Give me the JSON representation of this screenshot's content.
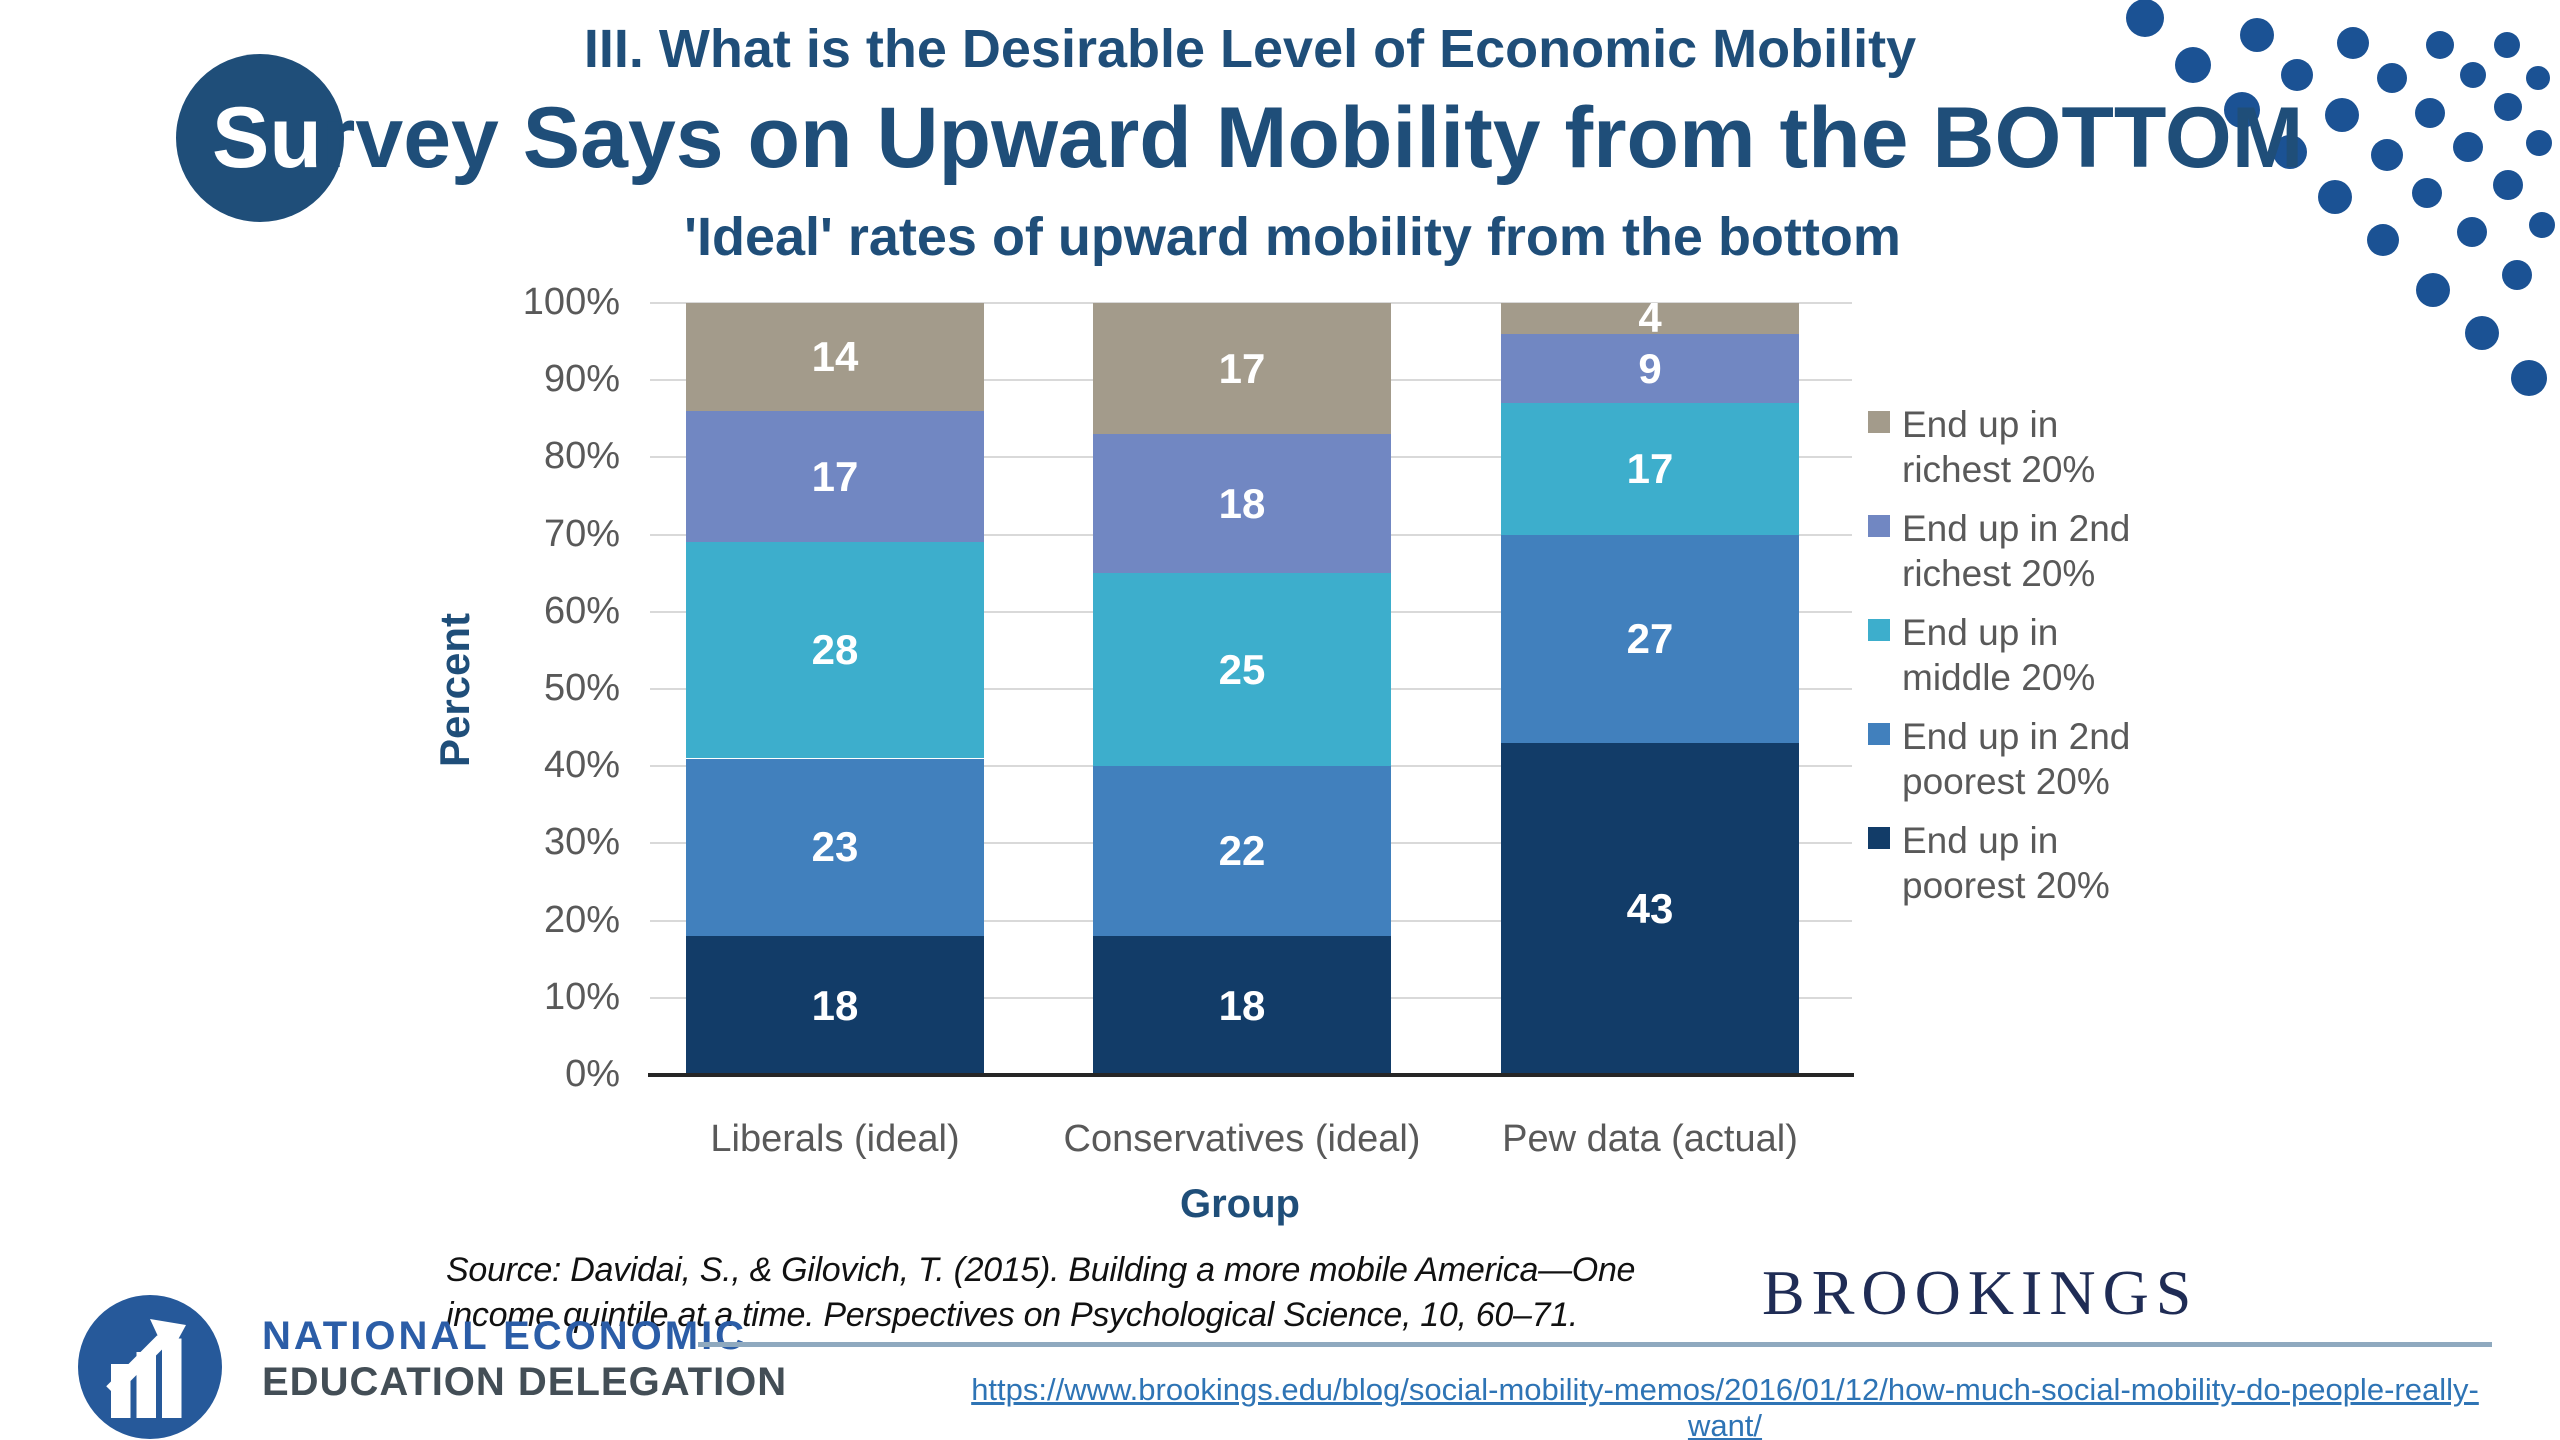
{
  "header": {
    "kicker": "III. What is the Desirable Level of Economic Mobility",
    "title_highlight": "Su",
    "title_rest": "rvey Says on Upward Mobility from the BOTTOM"
  },
  "chart_data": {
    "type": "bar",
    "stacked": true,
    "title": "'Ideal' rates of upward mobility from the bottom",
    "xlabel": "Group",
    "ylabel": "Percent",
    "ylim": [
      0,
      100
    ],
    "ytick_step": 10,
    "ytick_suffix": "%",
    "grid": true,
    "legend_position": "right",
    "categories": [
      "Liberals (ideal)",
      "Conservatives (ideal)",
      "Pew data (actual)"
    ],
    "series": [
      {
        "name": "End up in poorest 20%",
        "color": "#123C68",
        "values": [
          18,
          18,
          43
        ]
      },
      {
        "name": "End up in 2nd poorest 20%",
        "color": "#4180BD",
        "values": [
          23,
          22,
          27
        ]
      },
      {
        "name": "End up in middle 20%",
        "color": "#3DAECC",
        "values": [
          28,
          25,
          17
        ]
      },
      {
        "name": "End up in 2nd richest 20%",
        "color": "#7187C2",
        "values": [
          17,
          18,
          9
        ]
      },
      {
        "name": "End up in richest 20%",
        "color": "#A39B8B",
        "values": [
          14,
          17,
          4
        ]
      }
    ]
  },
  "source": {
    "line1": "Source: Davidai, S., & Gilovich, T. (2015). Building a more mobile America—One",
    "line2": "income quintile at a time. Perspectives on Psychological Science, 10, 60–71."
  },
  "footer": {
    "org_name_line1": "NATIONAL ECONOMIC",
    "org_name_line2": "EDUCATION DELEGATION",
    "brookings_logo_text": "BROOKINGS",
    "link": "https://www.brookings.edu/blog/social-mobility-memos/2016/01/12/how-much-social-mobility-do-people-really-want/"
  },
  "colors": {
    "title_navy": "#1F4E79",
    "dots_blue": "#1B5294",
    "gridline": "#D9D9D9",
    "axis_line": "#262626",
    "tick_text": "#595959",
    "legend_text": "#595959",
    "divider": "#8FA9BF",
    "link_blue": "#2E74B5",
    "brookings_navy": "#1F2C55",
    "need_blue": "#2B5DA7",
    "need_gray": "#434E56"
  }
}
